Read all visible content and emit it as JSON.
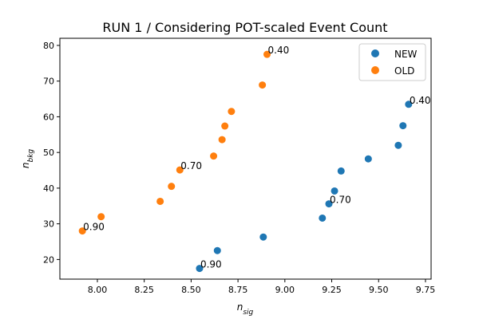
{
  "chart_data": {
    "type": "scatter",
    "title": "RUN 1 / Considering POT-scaled Event Count",
    "xlabel": {
      "base": "n",
      "sub": "sig"
    },
    "ylabel": {
      "base": "n",
      "sub": "bkg"
    },
    "xlim": [
      7.8,
      9.78
    ],
    "ylim": [
      14.5,
      82
    ],
    "xticks": [
      8.0,
      8.25,
      8.5,
      8.75,
      9.0,
      9.25,
      9.5,
      9.75
    ],
    "xtick_labels": [
      "8.00",
      "8.25",
      "8.50",
      "8.75",
      "9.00",
      "9.25",
      "9.50",
      "9.75"
    ],
    "yticks": [
      20,
      30,
      40,
      50,
      60,
      70,
      80
    ],
    "ytick_labels": [
      "20",
      "30",
      "40",
      "50",
      "60",
      "70",
      "80"
    ],
    "grid": false,
    "legend_position": "top-right",
    "series": [
      {
        "name": "NEW",
        "color": "#1f77b4",
        "points": [
          {
            "x": 8.545,
            "y": 17.5
          },
          {
            "x": 8.64,
            "y": 22.5
          },
          {
            "x": 8.885,
            "y": 26.3
          },
          {
            "x": 9.2,
            "y": 31.6
          },
          {
            "x": 9.235,
            "y": 35.6
          },
          {
            "x": 9.265,
            "y": 39.2
          },
          {
            "x": 9.3,
            "y": 44.8
          },
          {
            "x": 9.445,
            "y": 48.2
          },
          {
            "x": 9.605,
            "y": 52.0
          },
          {
            "x": 9.63,
            "y": 57.5
          },
          {
            "x": 9.66,
            "y": 63.5
          }
        ],
        "annotations": [
          {
            "point_index": 0,
            "text": "0.90"
          },
          {
            "point_index": 4,
            "text": "0.70"
          },
          {
            "point_index": 10,
            "text": "0.40"
          }
        ]
      },
      {
        "name": "OLD",
        "color": "#ff7f0e",
        "points": [
          {
            "x": 7.92,
            "y": 28.0
          },
          {
            "x": 8.02,
            "y": 32.0
          },
          {
            "x": 8.335,
            "y": 36.3
          },
          {
            "x": 8.395,
            "y": 40.5
          },
          {
            "x": 8.44,
            "y": 45.1
          },
          {
            "x": 8.62,
            "y": 49.0
          },
          {
            "x": 8.665,
            "y": 53.6
          },
          {
            "x": 8.68,
            "y": 57.4
          },
          {
            "x": 8.715,
            "y": 61.5
          },
          {
            "x": 8.88,
            "y": 68.9
          },
          {
            "x": 8.905,
            "y": 77.5
          }
        ],
        "annotations": [
          {
            "point_index": 0,
            "text": "0.90"
          },
          {
            "point_index": 4,
            "text": "0.70"
          },
          {
            "point_index": 10,
            "text": "0.40"
          }
        ]
      }
    ]
  }
}
